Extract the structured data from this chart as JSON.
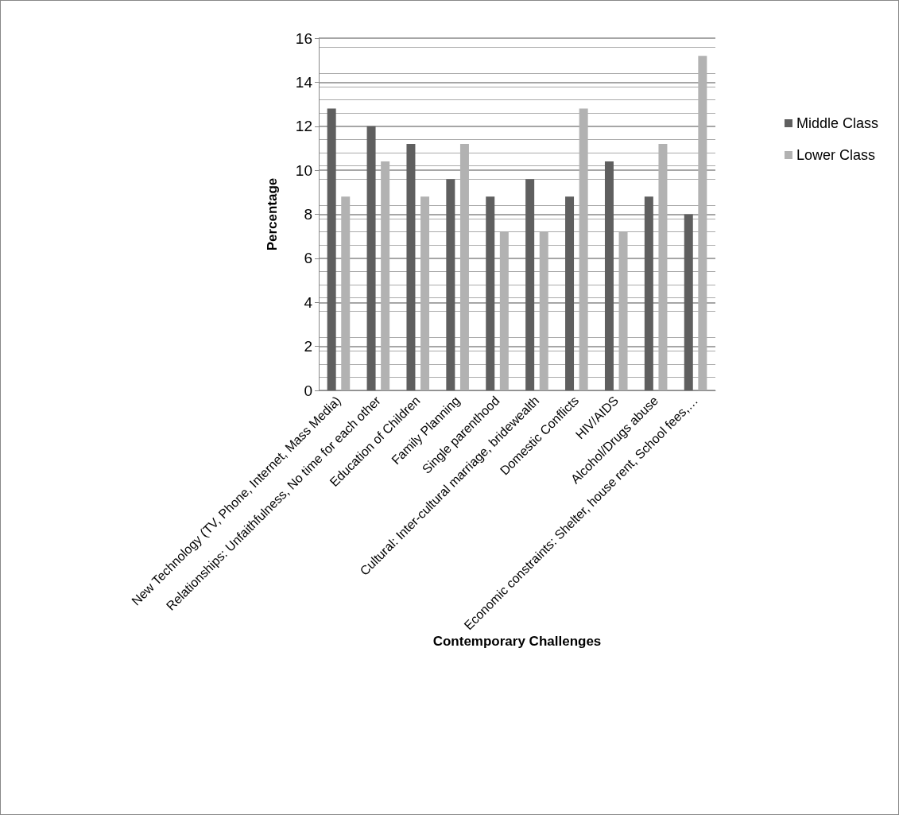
{
  "chart_data": {
    "type": "bar",
    "xlabel": "Contemporary Challenges",
    "ylabel": "Percentage",
    "categories": [
      "New Technology (TV, Phone, Internet, Mass Media)",
      "Relationships: Unfaithfulness, No time for each other",
      "Education of Children",
      "Family Planning",
      "Single parenthood",
      "Cultural: Inter-cultural marriage, bridewealth",
      "Domestic Conflicts",
      "HIV/AIDS",
      "Alcohol/Drugs abuse",
      "Economic constraints: Shelter, house rent, School fees,…"
    ],
    "series": [
      {
        "name": "Middle Class",
        "color": "#5f5f5f",
        "values": [
          12.8,
          12.0,
          11.2,
          9.6,
          8.8,
          9.6,
          8.8,
          10.4,
          8.8,
          8.0
        ]
      },
      {
        "name": "Lower Class",
        "color": "#b2b2b2",
        "values": [
          8.8,
          10.4,
          8.8,
          11.2,
          7.2,
          7.2,
          12.8,
          7.2,
          11.2,
          15.2
        ]
      }
    ],
    "ylim": [
      0,
      16
    ],
    "yticks": [
      0,
      2,
      4,
      6,
      8,
      10,
      12,
      14,
      16
    ],
    "grid": "y",
    "legend": "right"
  }
}
